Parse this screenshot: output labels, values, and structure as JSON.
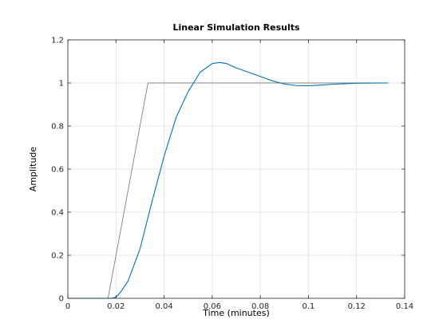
{
  "chart_data": {
    "type": "line",
    "title": "Linear Simulation Results",
    "xlabel": "Time (minutes)",
    "ylabel": "Amplitude",
    "xlim": [
      0,
      0.14
    ],
    "ylim": [
      0,
      1.2
    ],
    "xticks": [
      0,
      0.02,
      0.04,
      0.06,
      0.08,
      0.1,
      0.12,
      0.14
    ],
    "xtick_labels": [
      "0",
      "0.02",
      "0.04",
      "0.06",
      "0.08",
      "0.1",
      "0.12",
      "0.14"
    ],
    "yticks": [
      0,
      0.2,
      0.4,
      0.6,
      0.8,
      1,
      1.2
    ],
    "ytick_labels": [
      "0",
      "0.2",
      "0.4",
      "0.6",
      "0.8",
      "1",
      "1.2"
    ],
    "grid": true,
    "series": [
      {
        "color": "#808080",
        "x": [
          0,
          0.0167,
          0.0333,
          0.133
        ],
        "y": [
          0,
          0,
          1,
          1
        ]
      },
      {
        "color": "#0072bd",
        "x": [
          0,
          0.018,
          0.02,
          0.022,
          0.025,
          0.03,
          0.035,
          0.04,
          0.045,
          0.05,
          0.055,
          0.06,
          0.063,
          0.066,
          0.07,
          0.075,
          0.08,
          0.085,
          0.09,
          0.095,
          0.1,
          0.105,
          0.11,
          0.12,
          0.133
        ],
        "y": [
          0,
          0,
          0.005,
          0.03,
          0.08,
          0.23,
          0.45,
          0.66,
          0.84,
          0.96,
          1.05,
          1.09,
          1.095,
          1.09,
          1.07,
          1.05,
          1.03,
          1.01,
          0.995,
          0.988,
          0.987,
          0.99,
          0.994,
          0.999,
          1.0
        ]
      }
    ]
  }
}
